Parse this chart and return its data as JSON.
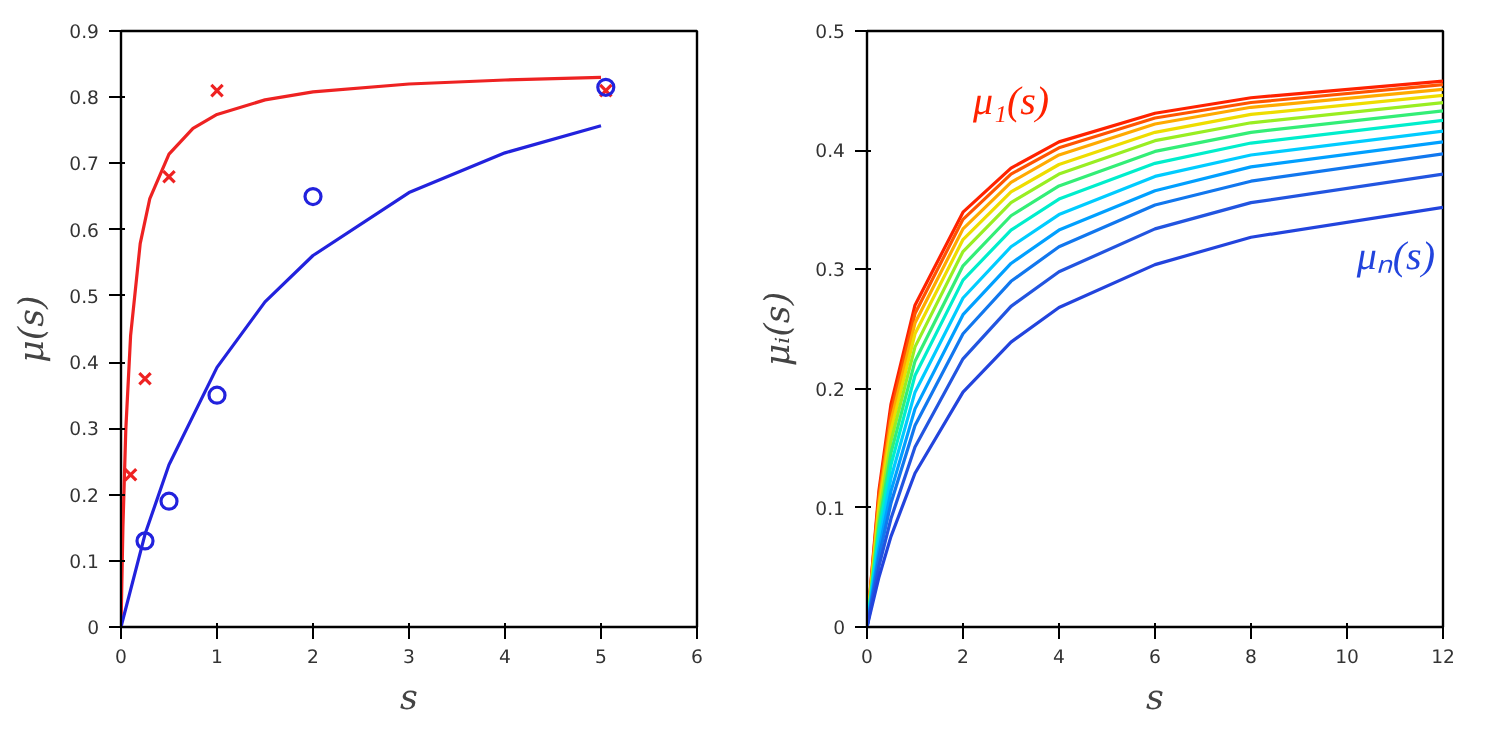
{
  "chart_data": [
    {
      "type": "line",
      "xlabel": "s",
      "ylabel": "μ(s)",
      "xlim": [
        0,
        6
      ],
      "xticks": [
        0,
        1,
        2,
        3,
        4,
        5,
        6
      ],
      "ylim": [
        0,
        0.9
      ],
      "yticks": [
        0,
        0.1,
        0.2,
        0.3,
        0.4,
        0.5,
        0.6,
        0.7,
        0.8,
        0.9
      ],
      "grid": false,
      "legend": false,
      "series": [
        {
          "type": "line",
          "color": "#ee2222",
          "x": [
            0,
            0.02,
            0.05,
            0.1,
            0.2,
            0.3,
            0.5,
            0.75,
            1,
            1.5,
            2,
            3,
            4,
            5
          ],
          "values": [
            0,
            0.151,
            0.298,
            0.44,
            0.579,
            0.647,
            0.714,
            0.753,
            0.774,
            0.796,
            0.808,
            0.82,
            0.826,
            0.83
          ]
        },
        {
          "type": "line",
          "color": "#2222dd",
          "x": [
            0,
            0.25,
            0.5,
            1,
            1.5,
            2,
            3,
            4,
            5
          ],
          "values": [
            0,
            0.14,
            0.245,
            0.392,
            0.491,
            0.561,
            0.656,
            0.716,
            0.757
          ]
        },
        {
          "type": "scatter",
          "marker": "cross",
          "color": "#ee2222",
          "x": [
            0.1,
            0.25,
            0.5,
            1.0,
            5.05
          ],
          "values": [
            0.23,
            0.375,
            0.68,
            0.81,
            0.81
          ]
        },
        {
          "type": "scatter",
          "marker": "circle",
          "color": "#2222dd",
          "x": [
            0.25,
            0.5,
            1.0,
            2.0,
            5.05
          ],
          "values": [
            0.13,
            0.19,
            0.35,
            0.65,
            0.815
          ]
        }
      ]
    },
    {
      "type": "line",
      "xlabel": "s",
      "ylabel": "μᵢ(s)",
      "xlim": [
        0,
        12
      ],
      "xticks": [
        0,
        2,
        4,
        6,
        8,
        10,
        12
      ],
      "ylim": [
        0,
        0.5
      ],
      "yticks": [
        0,
        0.1,
        0.2,
        0.3,
        0.4,
        0.5
      ],
      "grid": false,
      "legend": false,
      "x": [
        0,
        0.25,
        0.5,
        1,
        2,
        3,
        4,
        6,
        8,
        12
      ],
      "series": [
        {
          "name": "μ₁(s)",
          "color": "#ff2200",
          "values": [
            0,
            0.115,
            0.187,
            0.27,
            0.348,
            0.385,
            0.407,
            0.431,
            0.444,
            0.458
          ]
        },
        {
          "color": "#ff5500",
          "values": [
            0,
            0.111,
            0.18,
            0.263,
            0.342,
            0.38,
            0.402,
            0.427,
            0.44,
            0.455
          ]
        },
        {
          "color": "#ffaa00",
          "values": [
            0,
            0.105,
            0.173,
            0.255,
            0.334,
            0.373,
            0.396,
            0.422,
            0.436,
            0.451
          ]
        },
        {
          "color": "#eedd00",
          "values": [
            0,
            0.1,
            0.165,
            0.246,
            0.325,
            0.365,
            0.388,
            0.415,
            0.43,
            0.446
          ]
        },
        {
          "color": "#99ee22",
          "values": [
            0,
            0.093,
            0.156,
            0.235,
            0.315,
            0.356,
            0.38,
            0.408,
            0.423,
            0.44
          ]
        },
        {
          "color": "#33ee77",
          "values": [
            0,
            0.086,
            0.146,
            0.223,
            0.303,
            0.345,
            0.37,
            0.399,
            0.415,
            0.433
          ]
        },
        {
          "color": "#00eecc",
          "values": [
            0,
            0.08,
            0.136,
            0.211,
            0.291,
            0.333,
            0.359,
            0.389,
            0.406,
            0.425
          ]
        },
        {
          "color": "#00ccff",
          "values": [
            0,
            0.072,
            0.125,
            0.197,
            0.276,
            0.319,
            0.346,
            0.378,
            0.396,
            0.416
          ]
        },
        {
          "color": "#00a0ff",
          "values": [
            0,
            0.065,
            0.114,
            0.183,
            0.262,
            0.305,
            0.333,
            0.366,
            0.386,
            0.407
          ]
        },
        {
          "color": "#1177ee",
          "values": [
            0,
            0.059,
            0.104,
            0.169,
            0.246,
            0.29,
            0.319,
            0.354,
            0.374,
            0.397
          ]
        },
        {
          "color": "#2255e0",
          "values": [
            0,
            0.051,
            0.091,
            0.151,
            0.225,
            0.269,
            0.298,
            0.334,
            0.356,
            0.38
          ]
        },
        {
          "name": "μₙ(s)",
          "color": "#2244dd",
          "values": [
            0,
            0.042,
            0.076,
            0.129,
            0.197,
            0.239,
            0.268,
            0.304,
            0.327,
            0.352
          ]
        }
      ]
    }
  ]
}
